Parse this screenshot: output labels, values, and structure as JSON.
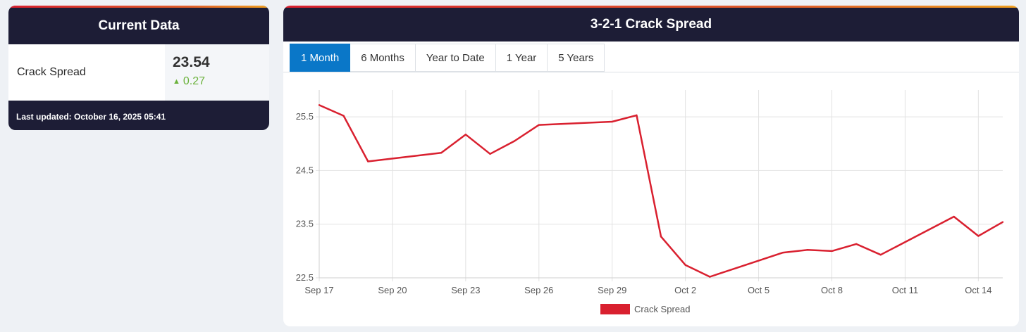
{
  "current": {
    "title": "Current Data",
    "metric_label": "Crack Spread",
    "value": "23.54",
    "change": "0.27",
    "change_color": "#6bb23c",
    "change_icon": "up-triangle-icon",
    "updated": "Last updated: October 16, 2025 05:41"
  },
  "chart_panel": {
    "title": "3-2-1 Crack Spread",
    "tabs": [
      {
        "label": "1 Month",
        "active": true
      },
      {
        "label": "6 Months",
        "active": false
      },
      {
        "label": "Year to Date",
        "active": false
      },
      {
        "label": "1 Year",
        "active": false
      },
      {
        "label": "5 Years",
        "active": false
      }
    ]
  },
  "chart_data": {
    "type": "line",
    "title": "3-2-1 Crack Spread",
    "x_ticks": [
      "Sep 17",
      "Sep 20",
      "Sep 23",
      "Sep 26",
      "Sep 29",
      "Oct 2",
      "Oct 5",
      "Oct 8",
      "Oct 11",
      "Oct 14"
    ],
    "y_ticks": [
      "22.5",
      "23.5",
      "24.5",
      "25.5"
    ],
    "ylim": [
      22.5,
      26.0
    ],
    "grid": true,
    "legend": "bottom",
    "series": [
      {
        "name": "Crack Spread",
        "color": "#d9202f",
        "x": [
          "Sep 17",
          "Sep 18",
          "Sep 19",
          "Sep 22",
          "Sep 23",
          "Sep 24",
          "Sep 25",
          "Sep 26",
          "Sep 29",
          "Sep 30",
          "Oct 1",
          "Oct 2",
          "Oct 3",
          "Oct 6",
          "Oct 7",
          "Oct 8",
          "Oct 9",
          "Oct 10",
          "Oct 13",
          "Oct 14",
          "Oct 15"
        ],
        "values": [
          25.72,
          25.52,
          24.67,
          24.83,
          25.17,
          24.81,
          25.05,
          25.35,
          25.41,
          25.53,
          23.27,
          22.74,
          22.52,
          22.97,
          23.02,
          23.0,
          23.13,
          22.93,
          23.64,
          23.28,
          23.54
        ]
      }
    ]
  }
}
